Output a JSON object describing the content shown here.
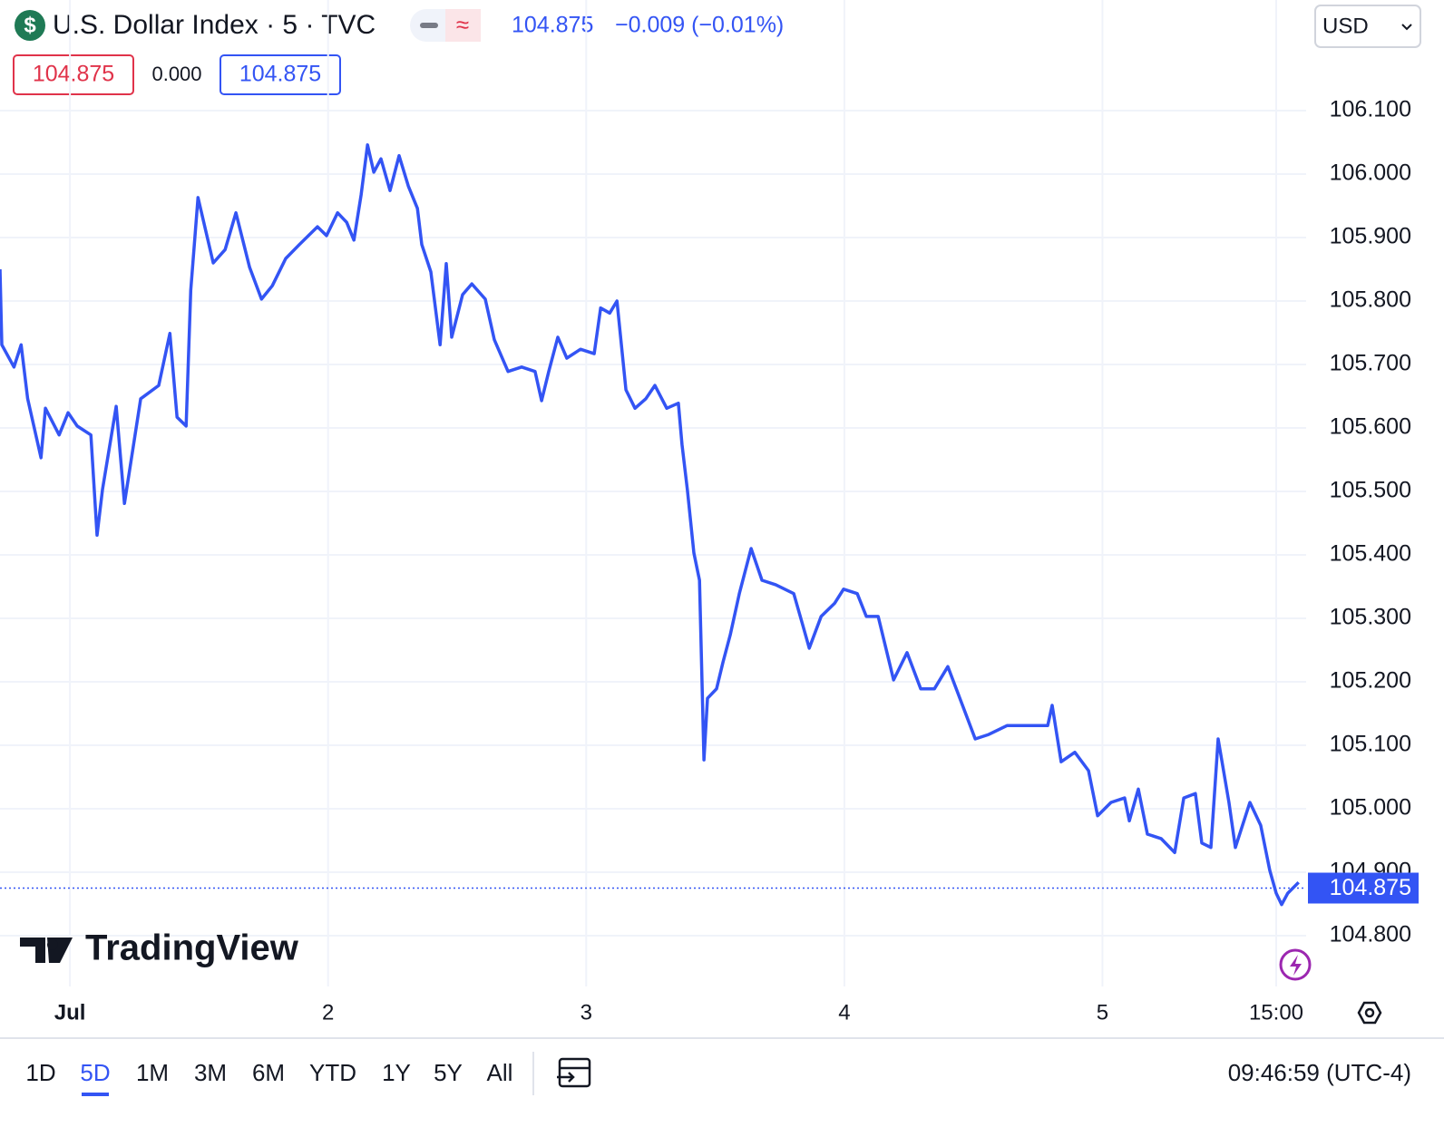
{
  "header": {
    "title": "U.S. Dollar Index · 5 · TVC",
    "price": "104.875",
    "change": "−0.009 (−0.01%)",
    "bid": "104.875",
    "spread": "0.000",
    "ask": "104.875",
    "currency": "USD"
  },
  "chart_data": {
    "type": "line",
    "color": "#3354f4",
    "grid": true,
    "x": [
      0.729,
      0.736,
      0.783,
      0.811,
      0.836,
      0.888,
      0.905,
      0.958,
      0.993,
      1.028,
      1.081,
      1.105,
      1.126,
      1.179,
      1.211,
      1.274,
      1.344,
      1.387,
      1.415,
      1.45,
      1.468,
      1.496,
      1.555,
      1.601,
      1.643,
      1.696,
      1.742,
      1.784,
      1.836,
      1.889,
      1.959,
      1.994,
      2.037,
      2.072,
      2.1,
      2.128,
      2.153,
      2.177,
      2.205,
      2.24,
      2.275,
      2.311,
      2.346,
      2.363,
      2.398,
      2.434,
      2.458,
      2.479,
      2.521,
      2.557,
      2.609,
      2.644,
      2.697,
      2.75,
      2.802,
      2.827,
      2.855,
      2.89,
      2.925,
      2.978,
      3.031,
      3.056,
      3.091,
      3.119,
      3.154,
      3.189,
      3.231,
      3.266,
      3.312,
      3.357,
      3.371,
      3.392,
      3.417,
      3.439,
      3.456,
      3.47,
      3.505,
      3.53,
      3.558,
      3.593,
      3.639,
      3.681,
      3.734,
      3.804,
      3.839,
      3.864,
      3.91,
      3.963,
      3.997,
      4.05,
      4.085,
      4.131,
      4.191,
      4.243,
      4.296,
      4.349,
      4.401,
      4.454,
      4.507,
      4.559,
      4.63,
      4.735,
      4.788,
      4.805,
      4.84,
      4.893,
      4.946,
      4.981,
      5.033,
      5.086,
      5.104,
      5.139,
      5.174,
      5.227,
      5.28,
      5.315,
      5.36,
      5.385,
      5.42,
      5.448,
      5.49,
      5.515,
      5.571,
      5.613,
      5.648,
      5.673,
      5.694,
      5.718,
      5.76
    ],
    "values": [
      105.85,
      105.731,
      105.696,
      105.731,
      105.646,
      105.553,
      105.631,
      105.589,
      105.624,
      105.603,
      105.589,
      105.431,
      105.503,
      105.634,
      105.481,
      105.646,
      105.667,
      105.749,
      105.617,
      105.603,
      105.817,
      105.963,
      105.86,
      105.881,
      105.939,
      105.853,
      105.803,
      105.824,
      105.867,
      105.889,
      105.917,
      105.903,
      105.939,
      105.924,
      105.896,
      105.967,
      106.046,
      106.003,
      106.024,
      105.974,
      106.029,
      105.981,
      105.946,
      105.889,
      105.846,
      105.731,
      105.859,
      105.743,
      105.81,
      105.827,
      105.803,
      105.739,
      105.689,
      105.696,
      105.689,
      105.643,
      105.689,
      105.743,
      105.71,
      105.724,
      105.717,
      105.789,
      105.781,
      105.8,
      105.66,
      105.631,
      105.646,
      105.667,
      105.631,
      105.639,
      105.574,
      105.503,
      105.403,
      105.36,
      105.077,
      105.174,
      105.189,
      105.231,
      105.274,
      105.339,
      105.41,
      105.36,
      105.353,
      105.339,
      105.289,
      105.253,
      105.303,
      105.324,
      105.346,
      105.339,
      105.303,
      105.303,
      105.203,
      105.246,
      105.189,
      105.189,
      105.224,
      105.167,
      105.11,
      105.117,
      105.131,
      105.131,
      105.131,
      105.163,
      105.074,
      105.089,
      105.06,
      104.989,
      105.01,
      105.017,
      104.981,
      105.031,
      104.96,
      104.953,
      104.931,
      105.017,
      105.024,
      104.946,
      104.939,
      105.11,
      105.01,
      104.939,
      105.01,
      104.974,
      104.903,
      104.867,
      104.849,
      104.867,
      104.884
    ],
    "xlim": [
      0.729,
      5.789
    ],
    "xticks": [
      {
        "value": 1,
        "label": "Jul"
      },
      2,
      3,
      4,
      5,
      {
        "value": 5.673,
        "label": "15:00"
      }
    ],
    "ylim": [
      104.72,
      106.2
    ],
    "yticks": [
      {
        "value": 104.8,
        "label": "104.800"
      },
      {
        "value": 104.9,
        "label": "104.900"
      },
      {
        "value": 105.0,
        "label": "105.000"
      },
      {
        "value": 105.1,
        "label": "105.100"
      },
      {
        "value": 105.2,
        "label": "105.200"
      },
      {
        "value": 105.3,
        "label": "105.300"
      },
      {
        "value": 105.4,
        "label": "105.400"
      },
      {
        "value": 105.5,
        "label": "105.500"
      },
      {
        "value": 105.6,
        "label": "105.600"
      },
      {
        "value": 105.7,
        "label": "105.700"
      },
      {
        "value": 105.8,
        "label": "105.800"
      },
      {
        "value": 105.9,
        "label": "105.900"
      },
      {
        "value": 106.0,
        "label": "106.000"
      },
      {
        "value": 106.1,
        "label": "106.100"
      }
    ],
    "last_price": 104.875
  },
  "watermark": "TradingView",
  "footer": {
    "ranges": [
      "1D",
      "5D",
      "1M",
      "3M",
      "6M",
      "YTD",
      "1Y",
      "5Y",
      "All"
    ],
    "selected": "5D",
    "time": "09:46:59 (UTC-4)"
  }
}
